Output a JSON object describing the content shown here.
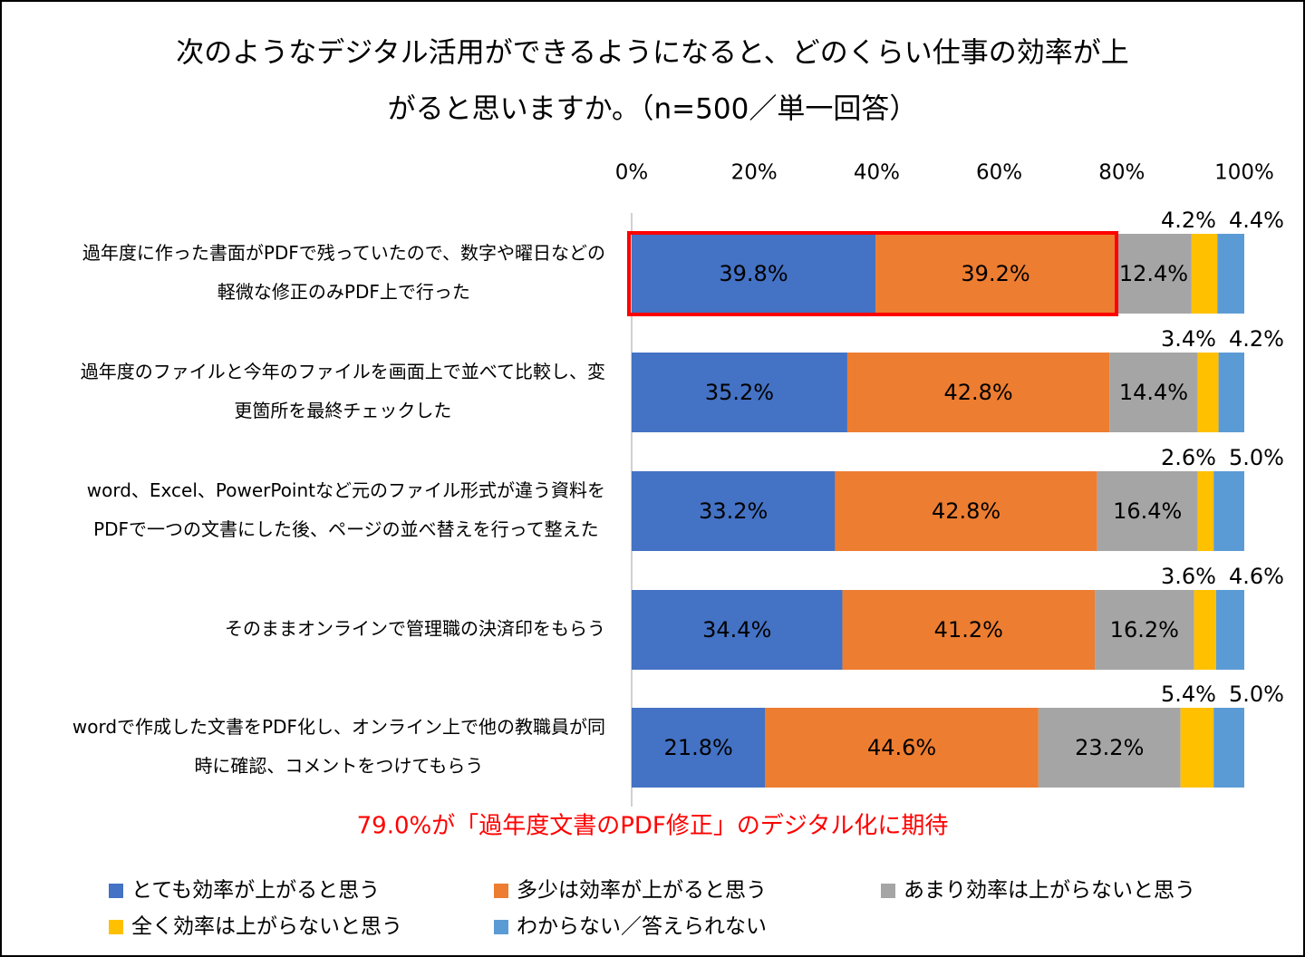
{
  "chart_data": {
    "type": "stacked-barh",
    "title": [
      "次のようなデジタル活用ができるようになると、どのくらい仕事の効率が上",
      "がると思いますか。（n=500／単一回答）"
    ],
    "categories": [
      [
        "過年度に作った書面がPDFで残っていたので、数字や曜日などの",
        "軽微な修正のみPDF上で行った"
      ],
      [
        "過年度のファイルと今年のファイルを画面上で並べて比較し、変",
        "更箇所を最終チェックした"
      ],
      [
        "word、Excel、PowerPointなど元のファイル形式が違う資料を",
        "PDFで一つの文書にした後、ページの並べ替えを行って整えた"
      ],
      [
        "そのままオンラインで管理職の決済印をもらう"
      ],
      [
        "wordで作成した文書をPDF化し、オンライン上で他の教職員が同",
        "時に確認、コメントをつけてもらう"
      ]
    ],
    "series": [
      {
        "name": "とても効率が上がると思う",
        "color": "#4472c4",
        "values": [
          39.8,
          35.2,
          33.2,
          34.4,
          21.8
        ],
        "value_labels": [
          "39.8%",
          "35.2%",
          "33.2%",
          "34.4%",
          "21.8%"
        ]
      },
      {
        "name": "多少は効率が上がると思う",
        "color": "#ed7d31",
        "values": [
          39.2,
          42.8,
          42.8,
          41.2,
          44.6
        ],
        "value_labels": [
          "39.2%",
          "42.8%",
          "42.8%",
          "41.2%",
          "44.6%"
        ]
      },
      {
        "name": "あまり効率は上がらないと思う",
        "color": "#a5a5a5",
        "values": [
          12.4,
          14.4,
          16.4,
          16.2,
          23.2
        ],
        "value_labels": [
          "12.4%",
          "14.4%",
          "16.4%",
          "16.2%",
          "23.2%"
        ]
      },
      {
        "name": "全く効率は上がらないと思う",
        "color": "#ffc000",
        "values": [
          4.2,
          3.4,
          2.6,
          3.6,
          5.4
        ],
        "value_labels": [
          "4.2%",
          "3.4%",
          "2.6%",
          "3.6%",
          "5.4%"
        ]
      },
      {
        "name": "わからない／答えられない",
        "color": "#5b9bd5",
        "values": [
          4.4,
          4.2,
          5.0,
          4.6,
          5.0
        ],
        "value_labels": [
          "4.4%",
          "4.2%",
          "5.0%",
          "4.6%",
          "5.0%"
        ]
      }
    ],
    "xlim": [
      0,
      100
    ],
    "xticks": [
      {
        "value": 0,
        "label": "0%"
      },
      {
        "value": 20,
        "label": "20%"
      },
      {
        "value": 40,
        "label": "40%"
      },
      {
        "value": 60,
        "label": "60%"
      },
      {
        "value": 80,
        "label": "80%"
      },
      {
        "value": 100,
        "label": "100%"
      }
    ],
    "annotation": "79.0%が「過年度文書のPDF修正」のデジタル化に期待",
    "annotation_color": "#ff0000",
    "legend": "bottom"
  }
}
